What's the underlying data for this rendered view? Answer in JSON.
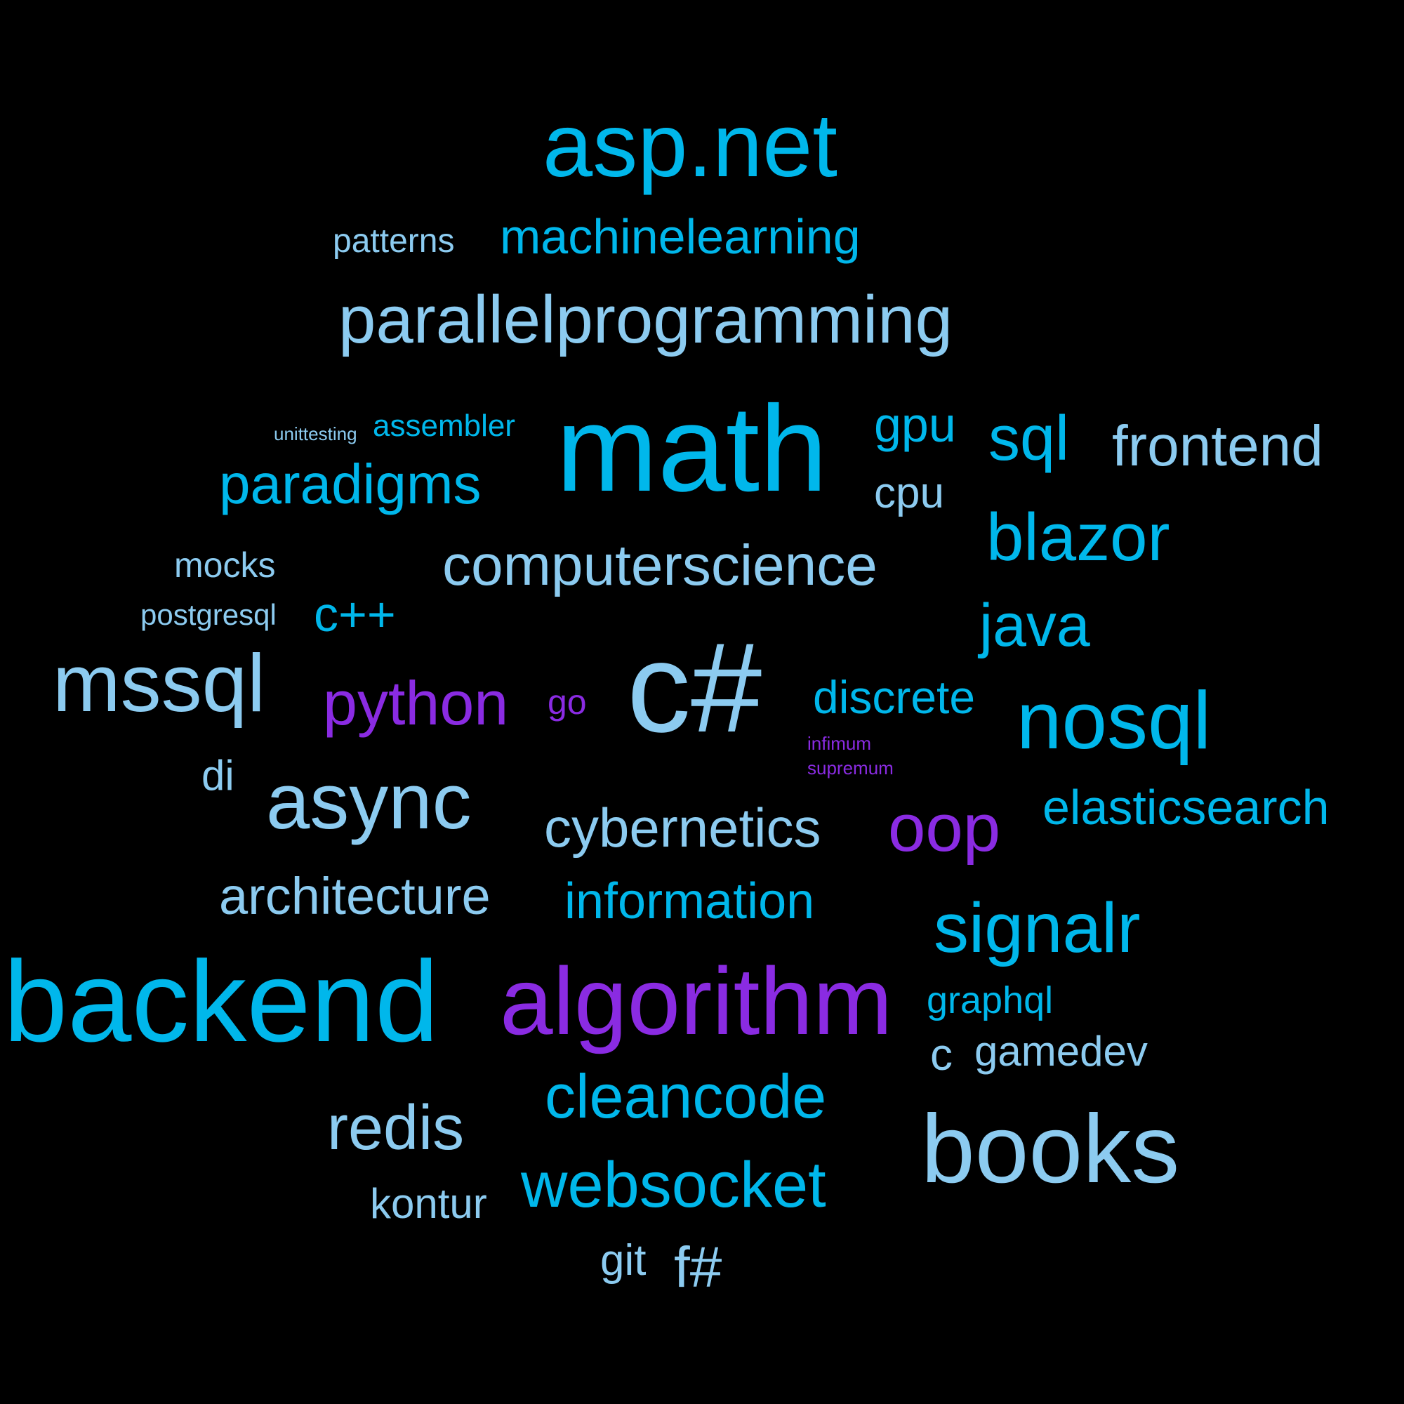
{
  "colors": {
    "background": "#000000",
    "blue": "#00b7eb",
    "light_blue": "#8ccbf0",
    "purple": "#8a2be2"
  },
  "words": [
    {
      "text": "asp.net",
      "color": "blue"
    },
    {
      "text": "patterns",
      "color": "light_blue"
    },
    {
      "text": "machinelearning",
      "color": "blue"
    },
    {
      "text": "parallelprogramming",
      "color": "light_blue"
    },
    {
      "text": "unittesting",
      "color": "light_blue"
    },
    {
      "text": "assembler",
      "color": "blue"
    },
    {
      "text": "math",
      "color": "blue"
    },
    {
      "text": "gpu",
      "color": "blue"
    },
    {
      "text": "sql",
      "color": "blue"
    },
    {
      "text": "frontend",
      "color": "light_blue"
    },
    {
      "text": "paradigms",
      "color": "blue"
    },
    {
      "text": "cpu",
      "color": "light_blue"
    },
    {
      "text": "blazor",
      "color": "blue"
    },
    {
      "text": "mocks",
      "color": "light_blue"
    },
    {
      "text": "computerscience",
      "color": "light_blue"
    },
    {
      "text": "postgresql",
      "color": "light_blue"
    },
    {
      "text": "c++",
      "color": "blue"
    },
    {
      "text": "java",
      "color": "blue"
    },
    {
      "text": "mssql",
      "color": "light_blue"
    },
    {
      "text": "python",
      "color": "purple"
    },
    {
      "text": "go",
      "color": "purple"
    },
    {
      "text": "c#",
      "color": "light_blue"
    },
    {
      "text": "discrete",
      "color": "blue"
    },
    {
      "text": "nosql",
      "color": "blue"
    },
    {
      "text": "infimum",
      "color": "purple"
    },
    {
      "text": "supremum",
      "color": "purple"
    },
    {
      "text": "di",
      "color": "light_blue"
    },
    {
      "text": "async",
      "color": "light_blue"
    },
    {
      "text": "cybernetics",
      "color": "light_blue"
    },
    {
      "text": "oop",
      "color": "purple"
    },
    {
      "text": "elasticsearch",
      "color": "blue"
    },
    {
      "text": "architecture",
      "color": "light_blue"
    },
    {
      "text": "information",
      "color": "blue"
    },
    {
      "text": "signalr",
      "color": "blue"
    },
    {
      "text": "backend",
      "color": "blue"
    },
    {
      "text": "algorithm",
      "color": "purple"
    },
    {
      "text": "graphql",
      "color": "blue"
    },
    {
      "text": "c",
      "color": "light_blue"
    },
    {
      "text": "gamedev",
      "color": "light_blue"
    },
    {
      "text": "cleancode",
      "color": "blue"
    },
    {
      "text": "redis",
      "color": "light_blue"
    },
    {
      "text": "books",
      "color": "light_blue"
    },
    {
      "text": "websocket",
      "color": "blue"
    },
    {
      "text": "kontur",
      "color": "light_blue"
    },
    {
      "text": "git",
      "color": "light_blue"
    },
    {
      "text": "f#",
      "color": "light_blue"
    }
  ]
}
